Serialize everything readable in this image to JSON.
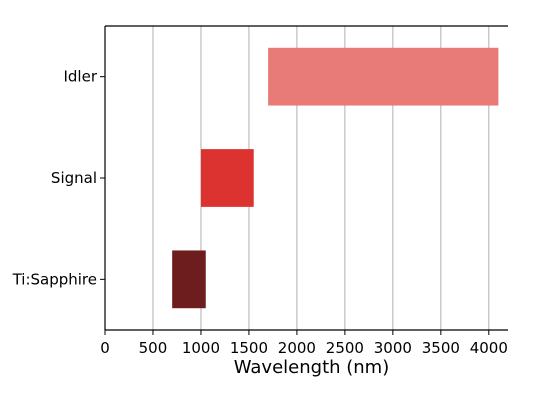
{
  "chart_data": {
    "type": "bar",
    "orientation": "horizontal",
    "subtype": "floating-range",
    "title": "",
    "xlabel": "Wavelength (nm)",
    "ylabel": "",
    "xlim": [
      0,
      4200
    ],
    "x_ticks": [
      0,
      500,
      1000,
      1500,
      2000,
      2500,
      3000,
      3500,
      4000
    ],
    "grid": {
      "x": true,
      "y": false
    },
    "categories": [
      "Idler",
      "Signal",
      "Ti:Sapphire"
    ],
    "ranges": [
      {
        "label": "Idler",
        "start": 1700,
        "end": 4100,
        "color": "#e87a78"
      },
      {
        "label": "Signal",
        "start": 1000,
        "end": 1550,
        "color": "#dc3330"
      },
      {
        "label": "Ti:Sapphire",
        "start": 700,
        "end": 1050,
        "color": "#6e1d1f"
      }
    ]
  }
}
